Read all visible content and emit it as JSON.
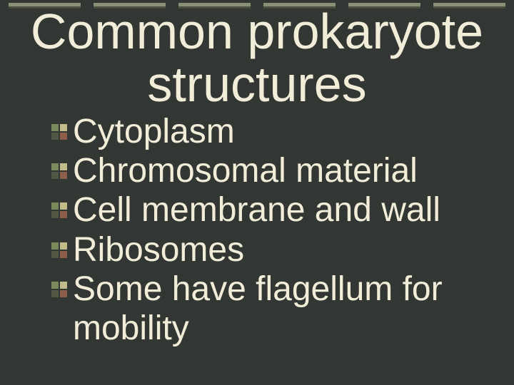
{
  "background_color": "#333733",
  "text_color": "#f1edd9",
  "title_fontsize": 70,
  "body_fontsize": 48,
  "top_bar": {
    "count": 6,
    "color": "#8b8f73",
    "shadow_color": "#4a4d3f",
    "height": 8,
    "gap": 18
  },
  "bullet_colors": {
    "top_left": "#7a8a5c",
    "top_right": "#c2bc8a",
    "bottom_left": "#515744",
    "bottom_right": "#8d5f4a"
  },
  "title": "Common prokaryote structures",
  "items": [
    "Cytoplasm",
    "Chromosomal material",
    "Cell membrane and wall",
    "Ribosomes",
    "Some have flagellum for mobility"
  ]
}
